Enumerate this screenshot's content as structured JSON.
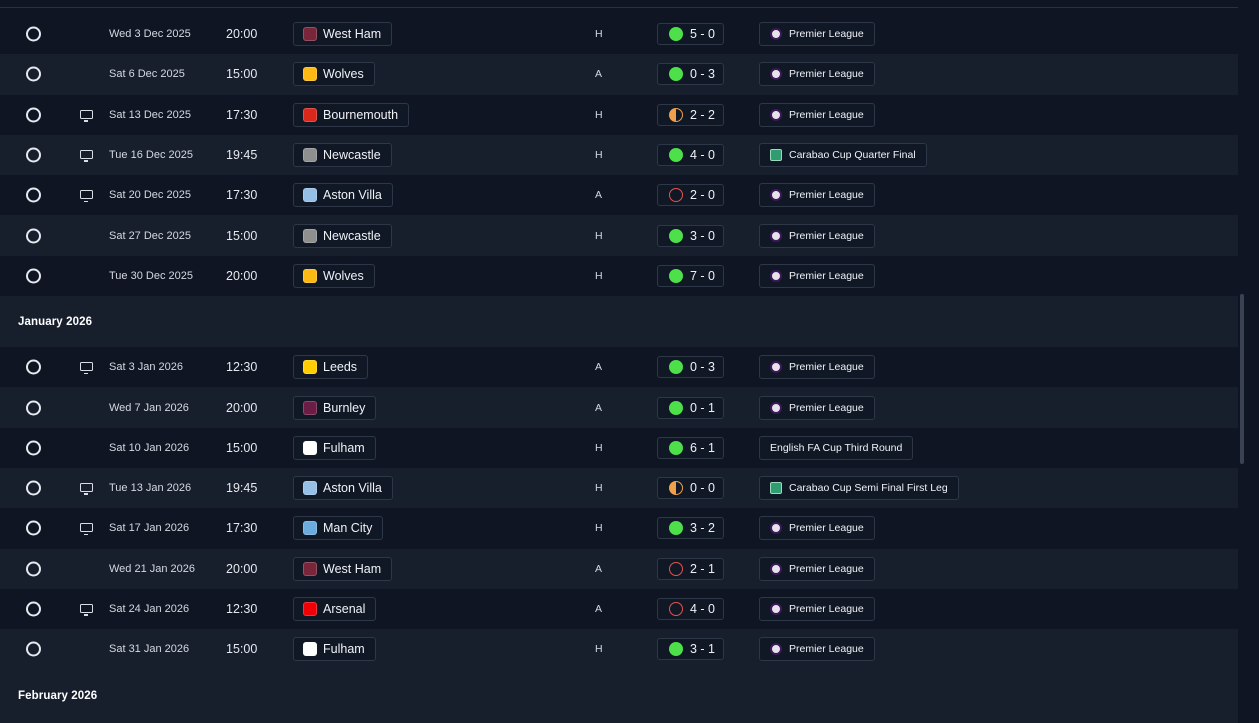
{
  "crest_colors": {
    "West Ham": "#7a263a",
    "Wolves": "#fdb913",
    "Bournemouth": "#da291c",
    "Newcastle": "#8f8f8f",
    "Aston Villa": "#95bfe5",
    "Leeds": "#ffcd00",
    "Burnley": "#6c1d45",
    "Fulham": "#ffffff",
    "Man City": "#6cabdd",
    "Arsenal": "#ef0107"
  },
  "sections": [
    {
      "month": "",
      "fixtures": [
        {
          "tv": false,
          "date": "Wed 3 Dec 2025",
          "time": "20:00",
          "team": "West Ham",
          "venue": "H",
          "outcome": "win",
          "score": "5 - 0",
          "competition": "Premier League",
          "comp_icon": "pl"
        },
        {
          "tv": false,
          "date": "Sat 6 Dec 2025",
          "time": "15:00",
          "team": "Wolves",
          "venue": "A",
          "outcome": "win",
          "score": "0 - 3",
          "competition": "Premier League",
          "comp_icon": "pl"
        },
        {
          "tv": true,
          "date": "Sat 13 Dec 2025",
          "time": "17:30",
          "team": "Bournemouth",
          "venue": "H",
          "outcome": "draw",
          "score": "2 - 2",
          "competition": "Premier League",
          "comp_icon": "pl"
        },
        {
          "tv": true,
          "date": "Tue 16 Dec 2025",
          "time": "19:45",
          "team": "Newcastle",
          "venue": "H",
          "outcome": "win",
          "score": "4 - 0",
          "competition": "Carabao Cup Quarter Final",
          "comp_icon": "cc"
        },
        {
          "tv": true,
          "date": "Sat 20 Dec 2025",
          "time": "17:30",
          "team": "Aston Villa",
          "venue": "A",
          "outcome": "loss",
          "score": "2 - 0",
          "competition": "Premier League",
          "comp_icon": "pl"
        },
        {
          "tv": false,
          "date": "Sat 27 Dec 2025",
          "time": "15:00",
          "team": "Newcastle",
          "venue": "H",
          "outcome": "win",
          "score": "3 - 0",
          "competition": "Premier League",
          "comp_icon": "pl"
        },
        {
          "tv": false,
          "date": "Tue 30 Dec 2025",
          "time": "20:00",
          "team": "Wolves",
          "venue": "H",
          "outcome": "win",
          "score": "7 - 0",
          "competition": "Premier League",
          "comp_icon": "pl"
        }
      ]
    },
    {
      "month": "January 2026",
      "fixtures": [
        {
          "tv": true,
          "date": "Sat 3 Jan 2026",
          "time": "12:30",
          "team": "Leeds",
          "venue": "A",
          "outcome": "win",
          "score": "0 - 3",
          "competition": "Premier League",
          "comp_icon": "pl"
        },
        {
          "tv": false,
          "date": "Wed 7 Jan 2026",
          "time": "20:00",
          "team": "Burnley",
          "venue": "A",
          "outcome": "win",
          "score": "0 - 1",
          "competition": "Premier League",
          "comp_icon": "pl"
        },
        {
          "tv": false,
          "date": "Sat 10 Jan 2026",
          "time": "15:00",
          "team": "Fulham",
          "venue": "H",
          "outcome": "win",
          "score": "6 - 1",
          "competition": "English FA Cup Third Round",
          "comp_icon": "none"
        },
        {
          "tv": true,
          "date": "Tue 13 Jan 2026",
          "time": "19:45",
          "team": "Aston Villa",
          "venue": "H",
          "outcome": "draw",
          "score": "0 - 0",
          "competition": "Carabao Cup Semi Final First Leg",
          "comp_icon": "cc"
        },
        {
          "tv": true,
          "date": "Sat 17 Jan 2026",
          "time": "17:30",
          "team": "Man City",
          "venue": "H",
          "outcome": "win",
          "score": "3 - 2",
          "competition": "Premier League",
          "comp_icon": "pl"
        },
        {
          "tv": false,
          "date": "Wed 21 Jan 2026",
          "time": "20:00",
          "team": "West Ham",
          "venue": "A",
          "outcome": "loss",
          "score": "2 - 1",
          "competition": "Premier League",
          "comp_icon": "pl"
        },
        {
          "tv": true,
          "date": "Sat 24 Jan 2026",
          "time": "12:30",
          "team": "Arsenal",
          "venue": "A",
          "outcome": "loss",
          "score": "4 - 0",
          "competition": "Premier League",
          "comp_icon": "pl"
        },
        {
          "tv": false,
          "date": "Sat 31 Jan 2026",
          "time": "15:00",
          "team": "Fulham",
          "venue": "H",
          "outcome": "win",
          "score": "3 - 1",
          "competition": "Premier League",
          "comp_icon": "pl"
        }
      ]
    },
    {
      "month": "February 2026",
      "fixtures": []
    }
  ]
}
